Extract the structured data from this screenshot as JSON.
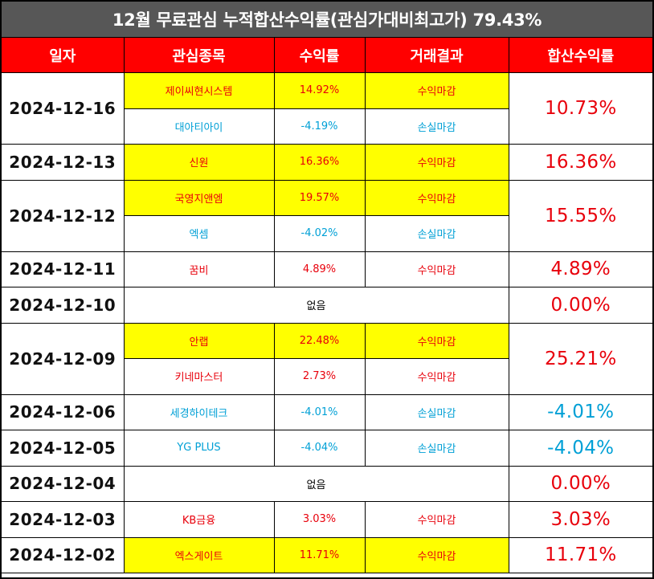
{
  "title": "12월 무료관심 누적합산수익률(관심가대비최고가) 79.43%",
  "headers": {
    "date": "일자",
    "stock": "관심종목",
    "rate": "수익률",
    "result": "거래결과",
    "total": "합산수익률"
  },
  "none_label": "없음",
  "colors": {
    "header_bg": "#ff0000",
    "title_bg": "#575757",
    "highlight": "#ffff00",
    "profit": "#e8000b",
    "loss": "#00a0d6"
  },
  "groups": [
    {
      "date": "2024-12-16",
      "total": "10.73%",
      "items": [
        {
          "stock": "제이씨현시스템",
          "rate": "14.92%",
          "result": "수익마감"
        },
        {
          "stock": "대아티아이",
          "rate": "-4.19%",
          "result": "손실마감"
        }
      ]
    },
    {
      "date": "2024-12-13",
      "total": "16.36%",
      "items": [
        {
          "stock": "신원",
          "rate": "16.36%",
          "result": "수익마감"
        }
      ]
    },
    {
      "date": "2024-12-12",
      "total": "15.55%",
      "items": [
        {
          "stock": "국영지앤엠",
          "rate": "19.57%",
          "result": "수익마감"
        },
        {
          "stock": "엑셈",
          "rate": "-4.02%",
          "result": "손실마감"
        }
      ]
    },
    {
      "date": "2024-12-11",
      "total": "4.89%",
      "items": [
        {
          "stock": "꿈비",
          "rate": "4.89%",
          "result": "수익마감"
        }
      ]
    },
    {
      "date": "2024-12-10",
      "total": "0.00%",
      "items": []
    },
    {
      "date": "2024-12-09",
      "total": "25.21%",
      "items": [
        {
          "stock": "안랩",
          "rate": "22.48%",
          "result": "수익마감"
        },
        {
          "stock": "키네마스터",
          "rate": "2.73%",
          "result": "수익마감"
        }
      ]
    },
    {
      "date": "2024-12-06",
      "total": "-4.01%",
      "items": [
        {
          "stock": "세경하이테크",
          "rate": "-4.01%",
          "result": "손실마감"
        }
      ]
    },
    {
      "date": "2024-12-05",
      "total": "-4.04%",
      "items": [
        {
          "stock": "YG PLUS",
          "rate": "-4.04%",
          "result": "손실마감"
        }
      ]
    },
    {
      "date": "2024-12-04",
      "total": "0.00%",
      "items": []
    },
    {
      "date": "2024-12-03",
      "total": "3.03%",
      "items": [
        {
          "stock": "KB금융",
          "rate": "3.03%",
          "result": "수익마감"
        }
      ]
    },
    {
      "date": "2024-12-02",
      "total": "11.71%",
      "items": [
        {
          "stock": "엑스게이트",
          "rate": "11.71%",
          "result": "수익마감"
        }
      ]
    }
  ]
}
